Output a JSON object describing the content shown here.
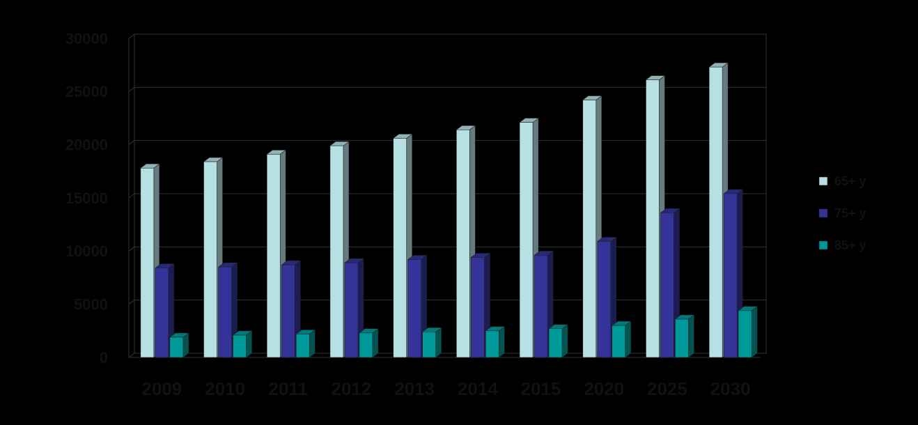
{
  "chart_data": {
    "type": "bar",
    "style": "3d-clustered-column",
    "background": "#000000",
    "categories": [
      "2009",
      "2010",
      "2011",
      "2012",
      "2013",
      "2014",
      "2015",
      "2020",
      "2025",
      "2030"
    ],
    "y_ticks": [
      "0",
      "5000",
      "10000",
      "15000",
      "20000",
      "25000",
      "30000"
    ],
    "ylim": [
      0,
      30000
    ],
    "grid": true,
    "legend_position": "right",
    "series": [
      {
        "name": "65+ y",
        "color": "#b7e0e4",
        "values": [
          17800,
          18400,
          19100,
          19900,
          20600,
          21400,
          22100,
          24200,
          26100,
          27300
        ]
      },
      {
        "name": "75+ y",
        "color": "#333399",
        "values": [
          8400,
          8500,
          8700,
          8900,
          9200,
          9400,
          9600,
          10900,
          13600,
          15400
        ]
      },
      {
        "name": "85+ y",
        "color": "#009999",
        "values": [
          1900,
          2100,
          2200,
          2300,
          2400,
          2500,
          2700,
          3000,
          3600,
          4400
        ]
      }
    ]
  }
}
